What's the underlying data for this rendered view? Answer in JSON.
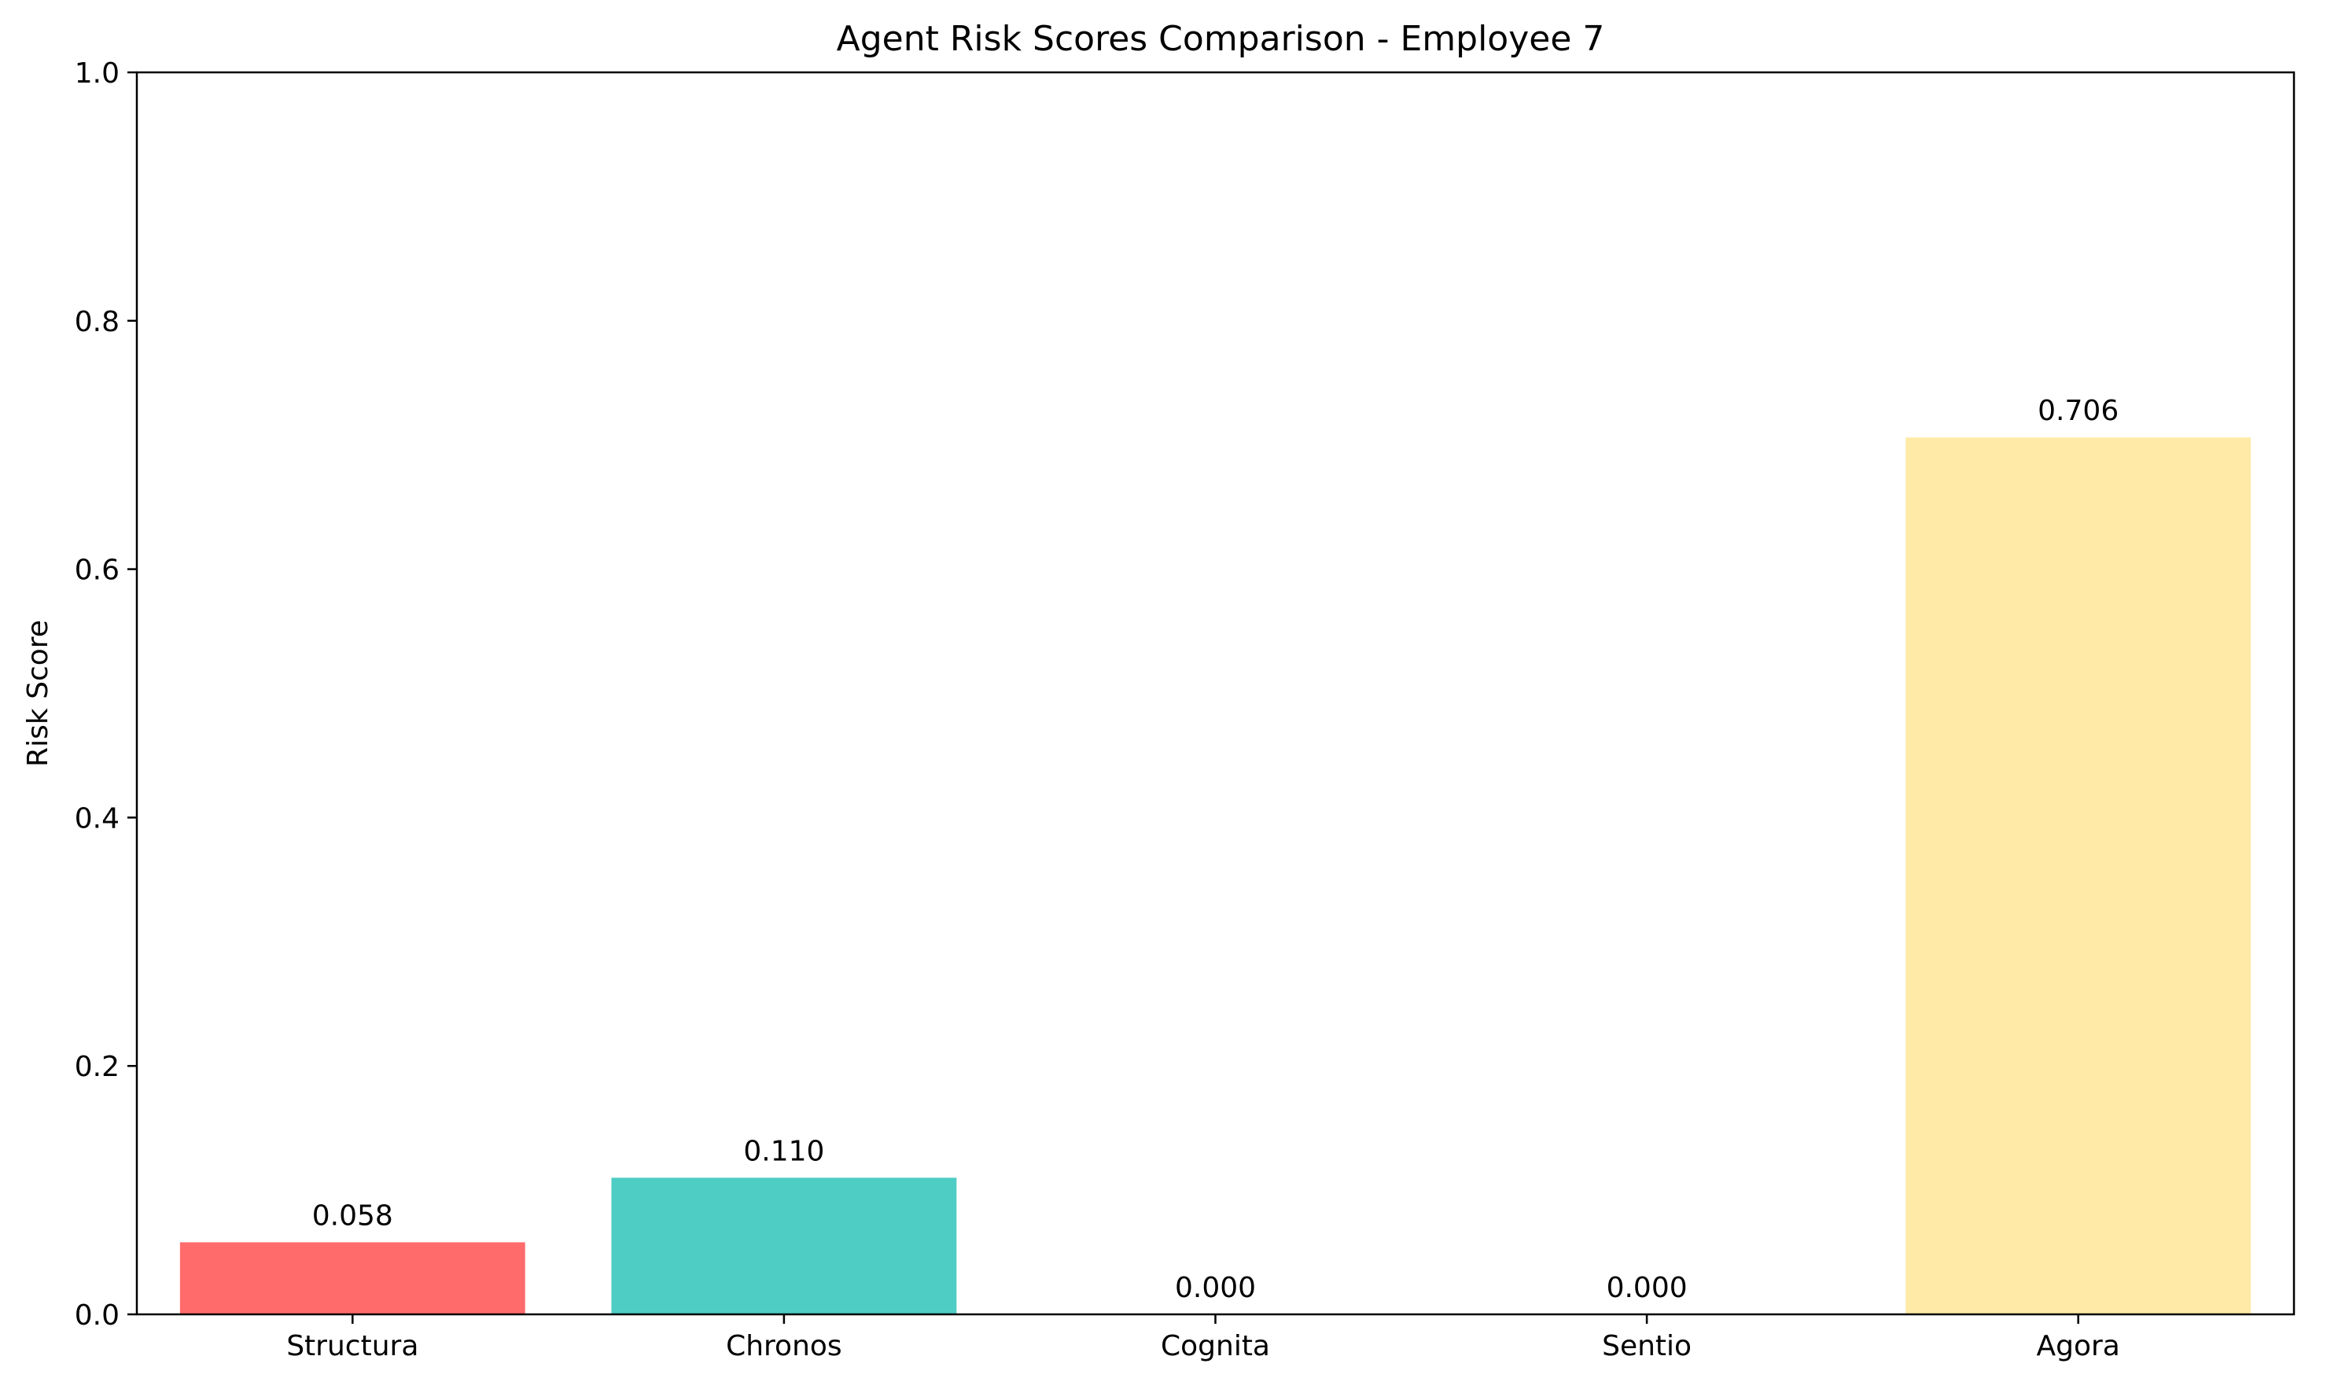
{
  "chart_data": {
    "type": "bar",
    "title": "Agent Risk Scores Comparison - Employee 7",
    "xlabel": "",
    "ylabel": "Risk Score",
    "ylim": [
      0,
      1.0
    ],
    "yticks": [
      "0.0",
      "0.2",
      "0.4",
      "0.6",
      "0.8",
      "1.0"
    ],
    "grid": false,
    "categories": [
      "Structura",
      "Chronos",
      "Cognita",
      "Sentio",
      "Agora"
    ],
    "values": [
      0.058,
      0.11,
      0.0,
      0.0,
      0.706
    ],
    "value_labels": [
      "0.058",
      "0.110",
      "0.000",
      "0.000",
      "0.706"
    ],
    "colors": [
      "#ff6b6b",
      "#4ecdc4",
      "#45b7d1",
      "#96ceb4",
      "#ffeaa7"
    ]
  }
}
